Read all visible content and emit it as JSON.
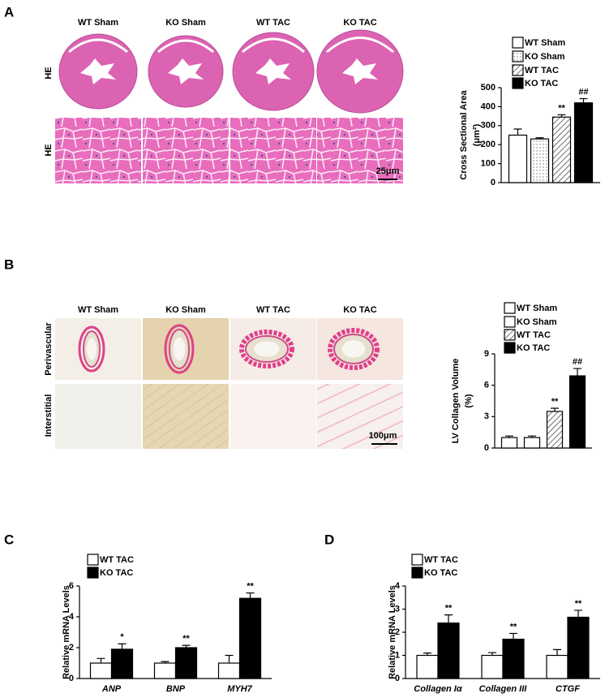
{
  "panels": {
    "A": {
      "label": "A",
      "headers": [
        "WT Sham",
        "KO Sham",
        "WT TAC",
        "KO TAC"
      ],
      "rows": [
        "HE",
        "HE"
      ],
      "scale": "25μm"
    },
    "B": {
      "label": "B",
      "headers": [
        "WT Sham",
        "KO Sham",
        "WT TAC",
        "KO TAC"
      ],
      "rows": [
        "Perivascular",
        "Interstitial"
      ],
      "scale": "100μm"
    },
    "C": {
      "label": "C"
    },
    "D": {
      "label": "D"
    }
  },
  "chart_data": [
    {
      "type": "bar",
      "ylabel": [
        "Cross Sectional Area",
        "(μm²)"
      ],
      "ylim": [
        0,
        500
      ],
      "yticks": [
        0,
        100,
        200,
        300,
        400,
        500
      ],
      "series": [
        {
          "name": "WT Sham",
          "color": "#ffffff",
          "pattern": "solid",
          "values": [
            250
          ],
          "errors": [
            32
          ]
        },
        {
          "name": "KO Sham",
          "color": "#ffffff",
          "pattern": "dots",
          "values": [
            230
          ],
          "errors": [
            6
          ]
        },
        {
          "name": "WT TAC",
          "color": "#ffffff",
          "pattern": "hatch",
          "values": [
            345
          ],
          "errors": [
            12
          ],
          "annotations": [
            "**"
          ]
        },
        {
          "name": "KO TAC",
          "color": "#000000",
          "pattern": "solid",
          "values": [
            420
          ],
          "errors": [
            22
          ],
          "annotations": [
            "##"
          ]
        }
      ]
    },
    {
      "type": "bar",
      "ylabel": [
        "LV Collagen Volume",
        "(%)"
      ],
      "ylim": [
        0,
        9
      ],
      "yticks": [
        0,
        3,
        6,
        9
      ],
      "series": [
        {
          "name": "WT Sham",
          "color": "#ffffff",
          "pattern": "solid",
          "values": [
            1.0
          ],
          "errors": [
            0.15
          ]
        },
        {
          "name": "KO Sham",
          "color": "#ffffff",
          "pattern": "solid",
          "values": [
            1.0
          ],
          "errors": [
            0.15
          ]
        },
        {
          "name": "WT TAC",
          "color": "#ffffff",
          "pattern": "hatch",
          "values": [
            3.5
          ],
          "errors": [
            0.3
          ],
          "annotations": [
            "**"
          ]
        },
        {
          "name": "KO TAC",
          "color": "#000000",
          "pattern": "solid",
          "values": [
            6.9
          ],
          "errors": [
            0.7
          ],
          "annotations": [
            "##"
          ]
        }
      ]
    },
    {
      "type": "bar",
      "ylabel": [
        "Relative mRNA Levels"
      ],
      "ylim": [
        0,
        6
      ],
      "yticks": [
        0,
        2,
        4,
        6
      ],
      "categories": [
        "ANP",
        "BNP",
        "MYH7"
      ],
      "series": [
        {
          "name": "WT TAC",
          "color": "#ffffff",
          "pattern": "solid",
          "values": [
            1.0,
            1.0,
            1.0
          ],
          "errors": [
            0.3,
            0.1,
            0.5
          ]
        },
        {
          "name": "KO TAC",
          "color": "#000000",
          "pattern": "solid",
          "values": [
            1.9,
            2.0,
            5.2
          ],
          "errors": [
            0.35,
            0.15,
            0.35
          ],
          "annotations": [
            "*",
            "**",
            "**"
          ]
        }
      ]
    },
    {
      "type": "bar",
      "ylabel": [
        "Relative mRNA Levels"
      ],
      "ylim": [
        0,
        4
      ],
      "yticks": [
        0,
        1,
        2,
        3,
        4
      ],
      "categories": [
        "Collagen Iα",
        "Collagen III",
        "CTGF"
      ],
      "series": [
        {
          "name": "WT TAC",
          "color": "#ffffff",
          "pattern": "solid",
          "values": [
            1.0,
            1.0,
            1.0
          ],
          "errors": [
            0.1,
            0.12,
            0.25
          ]
        },
        {
          "name": "KO TAC",
          "color": "#000000",
          "pattern": "solid",
          "values": [
            2.4,
            1.7,
            2.65
          ],
          "errors": [
            0.35,
            0.25,
            0.3
          ],
          "annotations": [
            "**",
            "**",
            "**"
          ]
        }
      ]
    }
  ]
}
